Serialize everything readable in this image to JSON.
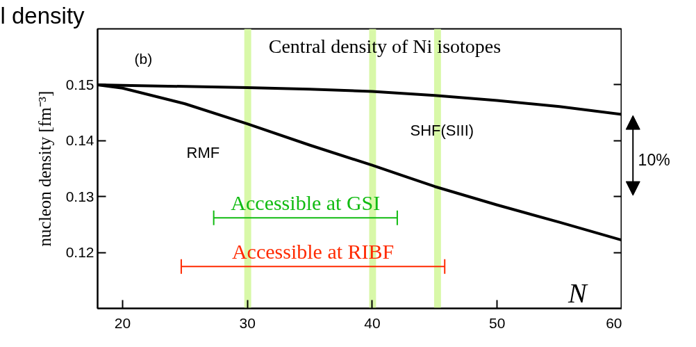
{
  "chart_data": {
    "type": "line",
    "title": "Central density of Ni isotopes",
    "xlabel": "N",
    "ylabel": "nucleon density [fm⁻³]",
    "xlim": [
      18,
      60
    ],
    "xticks": [
      20,
      30,
      40,
      50,
      60
    ],
    "ylim": [
      0.11,
      0.16
    ],
    "yticks": [
      0.12,
      0.13,
      0.14,
      0.15
    ],
    "grid": false,
    "line_style": "solid",
    "marker": "none",
    "series": [
      {
        "color": "#000000",
        "x": [
          18,
          20,
          25,
          30,
          35,
          40,
          45,
          50,
          55,
          60
        ],
        "values": [
          0.15,
          0.1499,
          0.1497,
          0.1495,
          0.1492,
          0.1488,
          0.1481,
          0.1472,
          0.1461,
          0.1447
        ]
      },
      {
        "color": "#000000",
        "x": [
          18,
          20,
          25,
          30,
          35,
          40,
          45,
          50,
          55,
          60
        ],
        "values": [
          0.15,
          0.1494,
          0.1466,
          0.143,
          0.1392,
          0.1356,
          0.1318,
          0.1285,
          0.1254,
          0.1222
        ]
      },
      {
        "type": "line",
        "name": "Accessible at GSI",
        "color": "#11bb11",
        "x": [
          27.3,
          42.0
        ],
        "values": [
          0.1262,
          0.1262
        ],
        "errors": [
          0.0013,
          0.0013
        ]
      },
      {
        "type": "line",
        "name": "Accessible at RIBF",
        "color": "#ff2a00",
        "x": [
          24.7,
          45.8
        ],
        "values": [
          0.1175,
          0.1175
        ],
        "errors": [
          0.0013,
          0.0013
        ]
      }
    ],
    "bands": [
      {
        "axis": "x",
        "from": 29.75,
        "to": 30.3,
        "color": "#d8f8a8"
      },
      {
        "axis": "x",
        "from": 39.75,
        "to": 40.3,
        "color": "#d8f8a8"
      },
      {
        "axis": "x",
        "from": 44.95,
        "to": 45.5,
        "color": "#d8f8a8"
      }
    ],
    "annotations": [
      "l density",
      "(b)",
      "RMF",
      "SHF(SIII)",
      "10%"
    ]
  }
}
